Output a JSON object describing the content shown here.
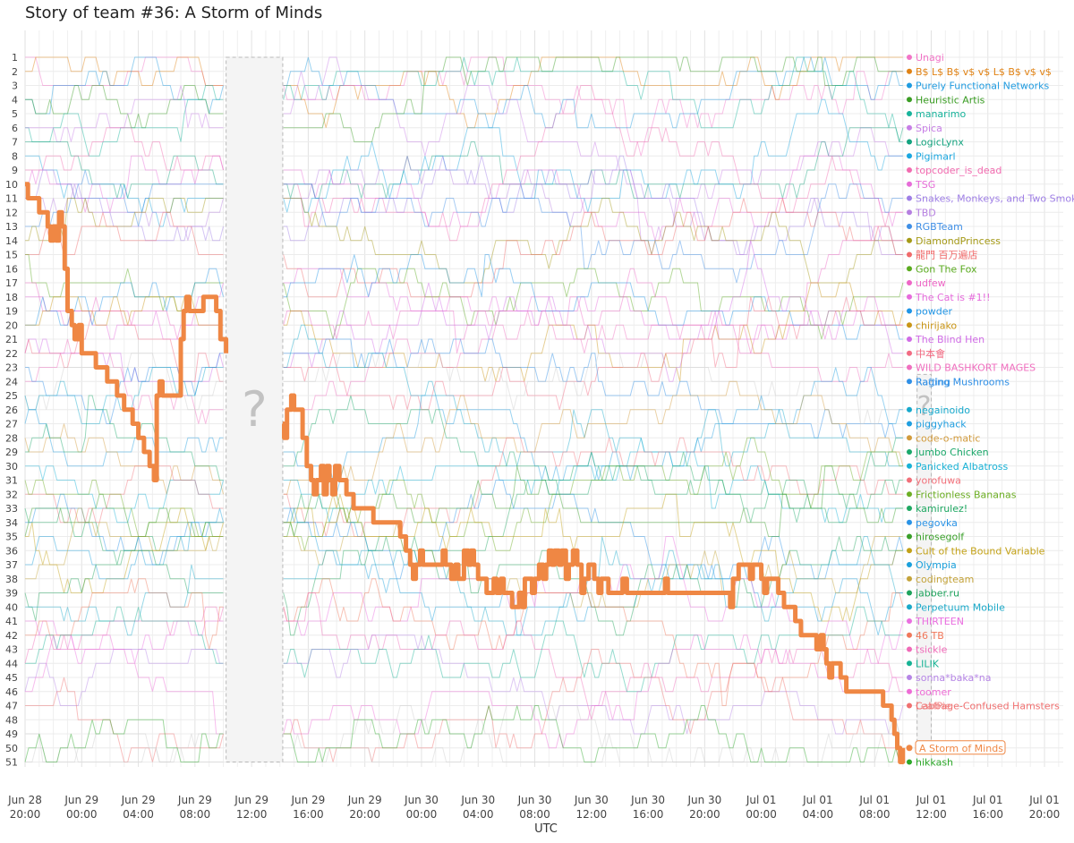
{
  "chart_data": {
    "type": "line",
    "title": "Story of team #36: A Storm of Minds",
    "xlabel": "UTC",
    "ylabel": "",
    "y_ticks": [
      "1",
      "2",
      "3",
      "4",
      "5",
      "6",
      "7",
      "8",
      "9",
      "10",
      "11",
      "12",
      "13",
      "14",
      "15",
      "16",
      "17",
      "18",
      "19",
      "20",
      "21",
      "22",
      "23",
      "24",
      "25",
      "26",
      "27",
      "28",
      "29",
      "30",
      "31",
      "32",
      "33",
      "34",
      "35",
      "36",
      "37",
      "38",
      "39",
      "40",
      "41",
      "42",
      "43",
      "44",
      "45",
      "46",
      "47",
      "48",
      "49",
      "50",
      "51"
    ],
    "x_ticks": [
      {
        "t": 0,
        "date": "Jun 28",
        "time": "20:00"
      },
      {
        "t": 4,
        "date": "Jun 29",
        "time": "00:00"
      },
      {
        "t": 8,
        "date": "Jun 29",
        "time": "04:00"
      },
      {
        "t": 12,
        "date": "Jun 29",
        "time": "08:00"
      },
      {
        "t": 16,
        "date": "Jun 29",
        "time": "12:00"
      },
      {
        "t": 20,
        "date": "Jun 29",
        "time": "16:00"
      },
      {
        "t": 24,
        "date": "Jun 29",
        "time": "20:00"
      },
      {
        "t": 28,
        "date": "Jun 30",
        "time": "00:00"
      },
      {
        "t": 32,
        "date": "Jun 30",
        "time": "04:00"
      },
      {
        "t": 36,
        "date": "Jun 30",
        "time": "08:00"
      },
      {
        "t": 40,
        "date": "Jun 30",
        "time": "12:00"
      },
      {
        "t": 44,
        "date": "Jun 30",
        "time": "16:00"
      },
      {
        "t": 48,
        "date": "Jun 30",
        "time": "20:00"
      },
      {
        "t": 52,
        "date": "Jul 01",
        "time": "00:00"
      },
      {
        "t": 56,
        "date": "Jul 01",
        "time": "04:00"
      },
      {
        "t": 60,
        "date": "Jul 01",
        "time": "08:00"
      },
      {
        "t": 64,
        "date": "Jul 01",
        "time": "12:00"
      },
      {
        "t": 68,
        "date": "Jul 01",
        "time": "16:00"
      },
      {
        "t": 72,
        "date": "Jul 01",
        "time": "20:00"
      }
    ],
    "gaps": [
      {
        "t0": 14.2,
        "t1": 18.2,
        "label": "?"
      },
      {
        "t0": 63.0,
        "t1": 64.0,
        "label": "?"
      }
    ],
    "highlight": {
      "name": "A Storm of Minds",
      "color": "#ef8744",
      "final_rank": 50,
      "points": [
        [
          0.0,
          10
        ],
        [
          0.2,
          11
        ],
        [
          0.8,
          11
        ],
        [
          1.0,
          12
        ],
        [
          1.4,
          12
        ],
        [
          1.6,
          13
        ],
        [
          1.8,
          14
        ],
        [
          2.0,
          13
        ],
        [
          2.2,
          14
        ],
        [
          2.4,
          12
        ],
        [
          2.6,
          13
        ],
        [
          2.8,
          16
        ],
        [
          3.0,
          19
        ],
        [
          3.3,
          20
        ],
        [
          3.5,
          21
        ],
        [
          3.8,
          20
        ],
        [
          4.0,
          22
        ],
        [
          4.8,
          22
        ],
        [
          5.0,
          23
        ],
        [
          5.6,
          23
        ],
        [
          5.8,
          24
        ],
        [
          6.2,
          24
        ],
        [
          6.5,
          25
        ],
        [
          7.0,
          26
        ],
        [
          7.6,
          27
        ],
        [
          8.0,
          28
        ],
        [
          8.4,
          29
        ],
        [
          8.8,
          30
        ],
        [
          9.1,
          31
        ],
        [
          9.3,
          25
        ],
        [
          9.5,
          24
        ],
        [
          9.7,
          25
        ],
        [
          10.8,
          25
        ],
        [
          11.0,
          21
        ],
        [
          11.2,
          19
        ],
        [
          11.4,
          18
        ],
        [
          11.6,
          19
        ],
        [
          12.4,
          19
        ],
        [
          12.6,
          18
        ],
        [
          13.3,
          18
        ],
        [
          13.5,
          19
        ],
        [
          13.8,
          21
        ],
        [
          14.0,
          21
        ],
        [
          14.2,
          22
        ],
        [
          18.2,
          27
        ],
        [
          18.3,
          28
        ],
        [
          18.5,
          26
        ],
        [
          18.8,
          25
        ],
        [
          19.0,
          26
        ],
        [
          19.4,
          26
        ],
        [
          19.6,
          28
        ],
        [
          19.9,
          30
        ],
        [
          20.2,
          31
        ],
        [
          20.4,
          32
        ],
        [
          20.6,
          31
        ],
        [
          20.9,
          30
        ],
        [
          21.1,
          32
        ],
        [
          21.3,
          30
        ],
        [
          21.5,
          31
        ],
        [
          21.7,
          32
        ],
        [
          21.9,
          30
        ],
        [
          22.2,
          31
        ],
        [
          22.5,
          31
        ],
        [
          22.7,
          32
        ],
        [
          23.0,
          32
        ],
        [
          23.2,
          33
        ],
        [
          24.3,
          33
        ],
        [
          24.6,
          34
        ],
        [
          26.2,
          34
        ],
        [
          26.5,
          35
        ],
        [
          26.9,
          36
        ],
        [
          27.2,
          37
        ],
        [
          27.4,
          38
        ],
        [
          27.6,
          37
        ],
        [
          27.9,
          36
        ],
        [
          28.1,
          37
        ],
        [
          29.2,
          37
        ],
        [
          29.5,
          36
        ],
        [
          29.7,
          37
        ],
        [
          30.1,
          38
        ],
        [
          30.4,
          37
        ],
        [
          30.6,
          38
        ],
        [
          31.0,
          36
        ],
        [
          31.3,
          37
        ],
        [
          31.5,
          36
        ],
        [
          31.7,
          37
        ],
        [
          32.0,
          38
        ],
        [
          32.4,
          38
        ],
        [
          32.6,
          39
        ],
        [
          32.9,
          39
        ],
        [
          33.1,
          38
        ],
        [
          33.3,
          39
        ],
        [
          33.6,
          38
        ],
        [
          33.8,
          39
        ],
        [
          34.2,
          39
        ],
        [
          34.4,
          40
        ],
        [
          34.7,
          40
        ],
        [
          34.9,
          39
        ],
        [
          35.1,
          40
        ],
        [
          35.3,
          38
        ],
        [
          35.6,
          38
        ],
        [
          35.8,
          39
        ],
        [
          36.0,
          38
        ],
        [
          36.3,
          37
        ],
        [
          36.6,
          38
        ],
        [
          36.8,
          37
        ],
        [
          37.0,
          36
        ],
        [
          37.2,
          37
        ],
        [
          37.4,
          36
        ],
        [
          37.7,
          37
        ],
        [
          37.9,
          36
        ],
        [
          38.2,
          38
        ],
        [
          38.4,
          37
        ],
        [
          38.7,
          36
        ],
        [
          39.0,
          37
        ],
        [
          39.3,
          39
        ],
        [
          39.5,
          38
        ],
        [
          39.8,
          37
        ],
        [
          40.2,
          38
        ],
        [
          40.5,
          39
        ],
        [
          40.7,
          38
        ],
        [
          41.0,
          38
        ],
        [
          41.2,
          39
        ],
        [
          42.0,
          39
        ],
        [
          42.2,
          38
        ],
        [
          42.5,
          39
        ],
        [
          45.0,
          39
        ],
        [
          45.2,
          38
        ],
        [
          45.4,
          39
        ],
        [
          49.6,
          39
        ],
        [
          49.8,
          40
        ],
        [
          50.0,
          38
        ],
        [
          50.4,
          37
        ],
        [
          51.0,
          37
        ],
        [
          51.2,
          38
        ],
        [
          51.4,
          37
        ],
        [
          51.8,
          37
        ],
        [
          52.0,
          38
        ],
        [
          52.2,
          39
        ],
        [
          52.4,
          38
        ],
        [
          52.8,
          38
        ],
        [
          53.2,
          39
        ],
        [
          53.6,
          40
        ],
        [
          54.0,
          40
        ],
        [
          54.4,
          41
        ],
        [
          54.8,
          42
        ],
        [
          55.6,
          42
        ],
        [
          55.9,
          43
        ],
        [
          56.2,
          42
        ],
        [
          56.4,
          43
        ],
        [
          56.6,
          44
        ],
        [
          56.8,
          45
        ],
        [
          57.0,
          44
        ],
        [
          57.4,
          44
        ],
        [
          57.6,
          45
        ],
        [
          58.0,
          46
        ],
        [
          60.4,
          46
        ],
        [
          60.6,
          47
        ],
        [
          61.0,
          47
        ],
        [
          61.2,
          48
        ],
        [
          61.4,
          49
        ],
        [
          61.6,
          50
        ],
        [
          61.8,
          51
        ],
        [
          62.0,
          50
        ]
      ]
    },
    "teams": [
      {
        "rank": 1,
        "name": "Unagi",
        "color": "#f274c7"
      },
      {
        "rank": 2,
        "name": "B$ L$ B$ v$ v$ L$ B$ v$ v$",
        "color": "#e08214"
      },
      {
        "rank": 3,
        "name": "Purely Functional Networks",
        "color": "#1f9be0"
      },
      {
        "rank": 4,
        "name": "Heuristic Artis",
        "color": "#3a9d23"
      },
      {
        "rank": 5,
        "name": "manarimo",
        "color": "#17b39b"
      },
      {
        "rank": 6,
        "name": "Spica",
        "color": "#c77ee6"
      },
      {
        "rank": 7,
        "name": "LogicLynx",
        "color": "#14a37f"
      },
      {
        "rank": 8,
        "name": "Pigimarl",
        "color": "#1aa7e0"
      },
      {
        "rank": 9,
        "name": "topcoder_is_dead",
        "color": "#f26bb0"
      },
      {
        "rank": 10,
        "name": "TSG",
        "color": "#e66cd8"
      },
      {
        "rank": 11,
        "name": "Snakes, Monkeys, and Two Smoking Lambdas",
        "color": "#9f7fe6"
      },
      {
        "rank": 12,
        "name": "TBD",
        "color": "#b57fe0"
      },
      {
        "rank": 13,
        "name": "RGBTeam",
        "color": "#3f8fe6"
      },
      {
        "rank": 14,
        "name": "DiamondPrincess",
        "color": "#a59a16"
      },
      {
        "rank": 15,
        "name": "龍門 百万遍店",
        "color": "#f06a6a"
      },
      {
        "rank": 16,
        "name": "Gon The Fox",
        "color": "#5aab1f"
      },
      {
        "rank": 17,
        "name": "udfew",
        "color": "#ee66c6"
      },
      {
        "rank": 18,
        "name": "The Cat is #1!!",
        "color": "#e66bdc"
      },
      {
        "rank": 19,
        "name": "powder",
        "color": "#1f95e6"
      },
      {
        "rank": 20,
        "name": "chirijako",
        "color": "#c99516"
      },
      {
        "rank": 21,
        "name": "The Blind Hen",
        "color": "#d06be6"
      },
      {
        "rank": 22,
        "name": "中本會",
        "color": "#f26b83"
      },
      {
        "rank": 23,
        "name": "WILD BASHKORT MAGES",
        "color": "#f06fbf"
      },
      {
        "rank": 24,
        "name": "Raging Mushrooms",
        "color": "#2f8fe6",
        "overlap_label": "Rafting"
      },
      {
        "rank": 25,
        "name": "",
        "color": "#cccccc"
      },
      {
        "rank": 26,
        "name": "negainoido",
        "color": "#16a8cc"
      },
      {
        "rank": 27,
        "name": "piggyhack",
        "color": "#1f9ee0"
      },
      {
        "rank": 28,
        "name": "code-o-matic",
        "color": "#d29b3c"
      },
      {
        "rank": 29,
        "name": "Jumbo Chicken",
        "color": "#1aa86a"
      },
      {
        "rank": 30,
        "name": "Panicked Albatross",
        "color": "#18b2d6"
      },
      {
        "rank": 31,
        "name": "yorofuwa",
        "color": "#f2707a"
      },
      {
        "rank": 32,
        "name": "Frictionless Bananas",
        "color": "#6cae23"
      },
      {
        "rank": 33,
        "name": "kamirulez!",
        "color": "#1ea862"
      },
      {
        "rank": 34,
        "name": "pegovka",
        "color": "#2a93e6"
      },
      {
        "rank": 35,
        "name": "hirosegolf",
        "color": "#3aa02a"
      },
      {
        "rank": 36,
        "name": "Cult of the Bound Variable",
        "color": "#c3a116"
      },
      {
        "rank": 37,
        "name": "Olympia",
        "color": "#1aa0dc"
      },
      {
        "rank": 38,
        "name": "codingteam",
        "color": "#c4a33a"
      },
      {
        "rank": 39,
        "name": "jabber.ru",
        "color": "#1ea35c"
      },
      {
        "rank": 40,
        "name": "Perpetuum Mobile",
        "color": "#1aa9c9"
      },
      {
        "rank": 41,
        "name": "THIRTEEN",
        "color": "#ea6ee0"
      },
      {
        "rank": 42,
        "name": "46 TB",
        "color": "#f0775a"
      },
      {
        "rank": 43,
        "name": "tsickle",
        "color": "#f06ab8"
      },
      {
        "rank": 44,
        "name": "LILIK",
        "color": "#16b294"
      },
      {
        "rank": 45,
        "name": "sonna*baka*na",
        "color": "#b685e6"
      },
      {
        "rank": 46,
        "name": "toomer",
        "color": "#ee6cd6"
      },
      {
        "rank": 47,
        "name": "Cabbage-Confused Hamsters",
        "color": "#f07070",
        "overlap_label": "LeafPie"
      },
      {
        "rank": 48,
        "name": "",
        "color": "#cccccc"
      },
      {
        "rank": 49,
        "name": "",
        "color": "#cccccc"
      },
      {
        "rank": 50,
        "name": "A Storm of Minds",
        "color": "#ef8744"
      },
      {
        "rank": 51,
        "name": "hikkash",
        "color": "#2da82a"
      }
    ],
    "background_series_note": "",
    "grid": true,
    "legend_placement": "right"
  }
}
